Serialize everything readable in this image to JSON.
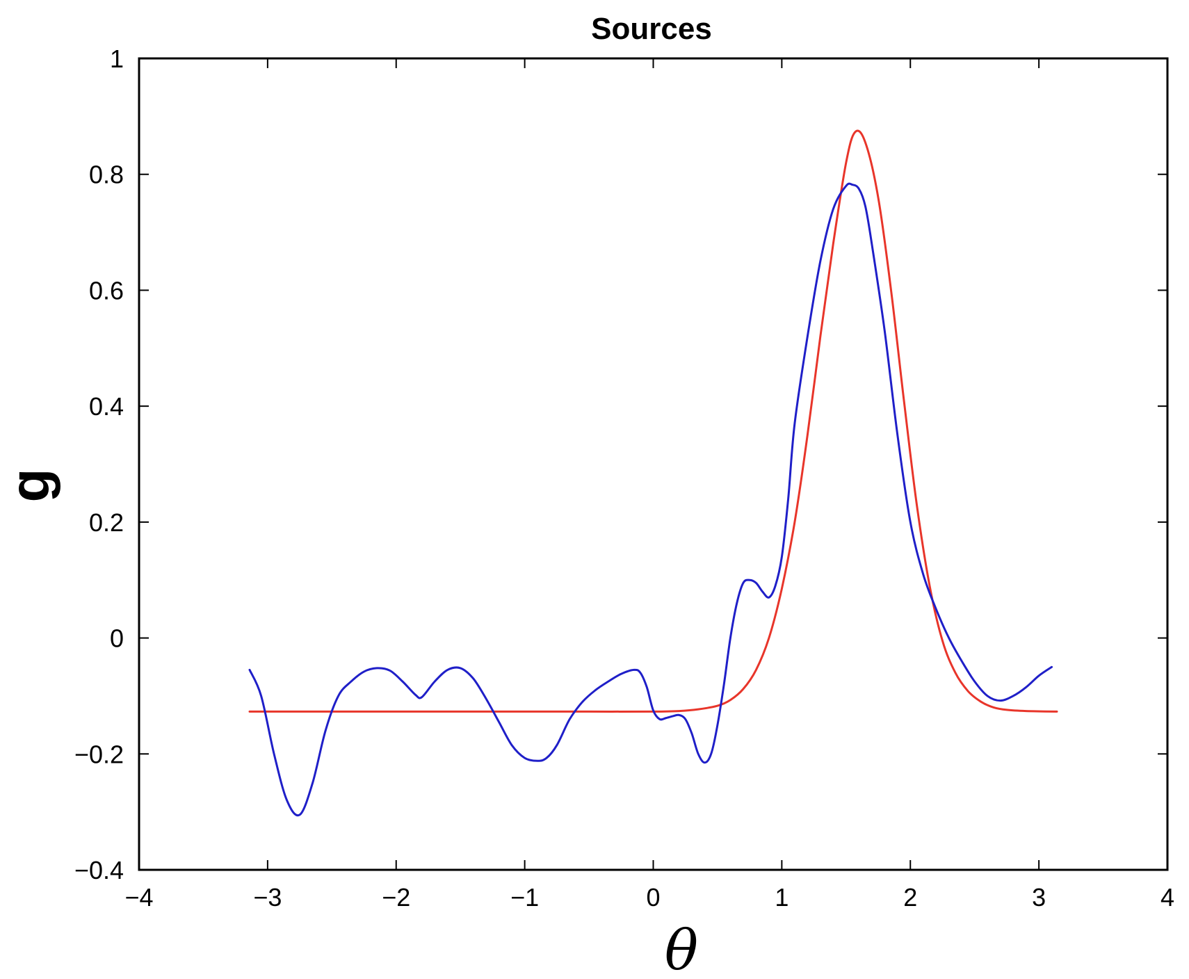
{
  "chart_data": {
    "type": "line",
    "title": "Sources",
    "xlabel": "θ",
    "ylabel": "g",
    "xlim": [
      -4,
      4
    ],
    "ylim": [
      -0.4,
      1
    ],
    "xticks": [
      -4,
      -3,
      -2,
      -1,
      0,
      1,
      2,
      3,
      4
    ],
    "xtick_labels": [
      "−4",
      "−3",
      "−2",
      "−1",
      "0",
      "1",
      "2",
      "3",
      "4"
    ],
    "yticks": [
      -0.4,
      -0.2,
      0,
      0.2,
      0.4,
      0.6,
      0.8,
      1
    ],
    "ytick_labels": [
      "−0.4",
      "−0.2",
      "0",
      "0.2",
      "0.4",
      "0.6",
      "0.8",
      "1"
    ],
    "grid": false,
    "legend": "none",
    "series": [
      {
        "color": "#e8352a",
        "x": [
          -3.14,
          -2.5,
          -2.0,
          -1.5,
          -1.0,
          -0.5,
          0.0,
          0.2,
          0.35,
          0.5,
          0.6,
          0.7,
          0.8,
          0.9,
          1.0,
          1.1,
          1.2,
          1.3,
          1.4,
          1.5,
          1.57,
          1.65,
          1.75,
          1.85,
          1.95,
          2.05,
          2.15,
          2.25,
          2.35,
          2.45,
          2.55,
          2.65,
          2.75,
          2.9,
          3.14
        ],
        "y": [
          -0.127,
          -0.127,
          -0.127,
          -0.127,
          -0.127,
          -0.127,
          -0.127,
          -0.126,
          -0.123,
          -0.117,
          -0.107,
          -0.088,
          -0.055,
          0.0,
          0.085,
          0.2,
          0.35,
          0.52,
          0.68,
          0.82,
          0.873,
          0.855,
          0.76,
          0.6,
          0.41,
          0.23,
          0.09,
          -0.005,
          -0.06,
          -0.092,
          -0.11,
          -0.12,
          -0.124,
          -0.126,
          -0.127
        ]
      },
      {
        "color": "#1f1fc8",
        "x": [
          -3.14,
          -3.05,
          -2.95,
          -2.85,
          -2.75,
          -2.65,
          -2.55,
          -2.45,
          -2.35,
          -2.25,
          -2.15,
          -2.05,
          -1.95,
          -1.85,
          -1.8,
          -1.7,
          -1.6,
          -1.5,
          -1.4,
          -1.3,
          -1.2,
          -1.1,
          -1.0,
          -0.9,
          -0.83,
          -0.75,
          -0.65,
          -0.55,
          -0.45,
          -0.35,
          -0.25,
          -0.15,
          -0.1,
          -0.05,
          0.0,
          0.05,
          0.1,
          0.15,
          0.2,
          0.25,
          0.3,
          0.35,
          0.4,
          0.45,
          0.5,
          0.55,
          0.6,
          0.65,
          0.7,
          0.75,
          0.8,
          0.85,
          0.9,
          0.95,
          1.0,
          1.05,
          1.1,
          1.2,
          1.3,
          1.4,
          1.5,
          1.55,
          1.6,
          1.65,
          1.7,
          1.8,
          1.9,
          2.0,
          2.1,
          2.2,
          2.3,
          2.4,
          2.5,
          2.6,
          2.7,
          2.8,
          2.9,
          3.0,
          3.1
        ],
        "y": [
          -0.055,
          -0.1,
          -0.2,
          -0.28,
          -0.305,
          -0.25,
          -0.16,
          -0.1,
          -0.075,
          -0.058,
          -0.052,
          -0.056,
          -0.075,
          -0.098,
          -0.102,
          -0.075,
          -0.055,
          -0.052,
          -0.07,
          -0.105,
          -0.145,
          -0.185,
          -0.207,
          -0.212,
          -0.207,
          -0.185,
          -0.14,
          -0.11,
          -0.09,
          -0.075,
          -0.062,
          -0.055,
          -0.06,
          -0.085,
          -0.125,
          -0.14,
          -0.138,
          -0.135,
          -0.133,
          -0.14,
          -0.165,
          -0.2,
          -0.215,
          -0.2,
          -0.15,
          -0.08,
          0.0,
          0.06,
          0.095,
          0.1,
          0.095,
          0.08,
          0.07,
          0.09,
          0.14,
          0.24,
          0.37,
          0.52,
          0.65,
          0.74,
          0.78,
          0.782,
          0.775,
          0.745,
          0.68,
          0.53,
          0.35,
          0.2,
          0.11,
          0.05,
          0.0,
          -0.04,
          -0.075,
          -0.1,
          -0.108,
          -0.1,
          -0.085,
          -0.065,
          -0.05
        ]
      }
    ]
  }
}
